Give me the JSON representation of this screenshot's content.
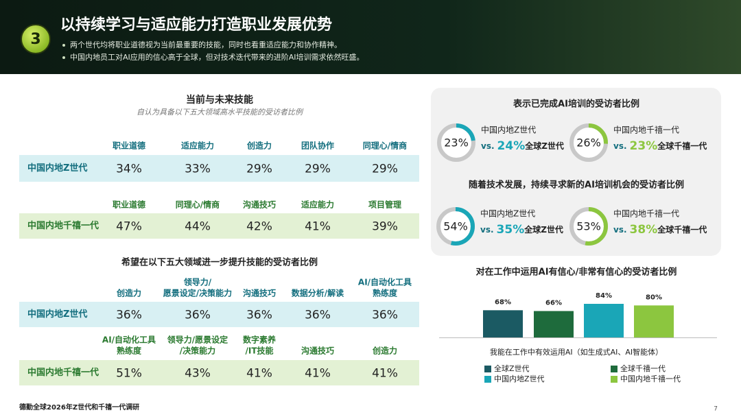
{
  "header": {
    "number": "3",
    "title": "以持续学习与适应能力打造职业发展优势",
    "bullets": [
      "两个世代均将职业道德视为当前最重要的技能，同时也看重适应能力和协作精神。",
      "中国内地员工对AI应用的信心高于全球，但对技术迭代带来的进阶AI培训需求依然旺盛。"
    ]
  },
  "skills": {
    "title": "当前与未来技能",
    "subtitle": "自认为具备以下五大领域高水平技能的受访者比例",
    "rows": [
      {
        "group": "中国内地Z世代",
        "items": [
          {
            "skill": [
              "职业道德"
            ],
            "value": "34%"
          },
          {
            "skill": [
              "适应能力"
            ],
            "value": "33%"
          },
          {
            "skill": [
              "创造力"
            ],
            "value": "29%"
          },
          {
            "skill": [
              "团队协作"
            ],
            "value": "29%"
          },
          {
            "skill": [
              "同理心/情商"
            ],
            "value": "29%"
          }
        ]
      },
      {
        "group": "中国内地千禧一代",
        "items": [
          {
            "skill": [
              "职业道德"
            ],
            "value": "47%"
          },
          {
            "skill": [
              "同理心/情商"
            ],
            "value": "44%"
          },
          {
            "skill": [
              "沟通技巧"
            ],
            "value": "42%"
          },
          {
            "skill": [
              "适应能力"
            ],
            "value": "41%"
          },
          {
            "skill": [
              "项目管理"
            ],
            "value": "39%"
          }
        ]
      }
    ]
  },
  "improve": {
    "title": "希望在以下五大领域进一步提升技能的受访者比例",
    "rows": [
      {
        "group": "中国内地Z世代",
        "items": [
          {
            "skill": [
              "创造力"
            ],
            "value": "36%"
          },
          {
            "skill": [
              "领导力/",
              "愿景设定/决策能力"
            ],
            "value": "36%"
          },
          {
            "skill": [
              "沟通技巧"
            ],
            "value": "36%"
          },
          {
            "skill": [
              "数据分析/解读"
            ],
            "value": "36%"
          },
          {
            "skill": [
              "AI/自动化工具",
              "熟练度"
            ],
            "value": "36%"
          }
        ]
      },
      {
        "group": "中国内地千禧一代",
        "items": [
          {
            "skill": [
              "AI/自动化工具",
              "熟练度"
            ],
            "value": "51%"
          },
          {
            "skill": [
              "领导力/愿景设定",
              "/决策能力"
            ],
            "value": "43%"
          },
          {
            "skill": [
              "数字素养",
              "/IT技能"
            ],
            "value": "41%"
          },
          {
            "skill": [
              "沟通技巧"
            ],
            "value": "41%"
          },
          {
            "skill": [
              "创造力"
            ],
            "value": "41%"
          }
        ]
      }
    ]
  },
  "ai_training": [
    {
      "title": "表示已完成AI培训的受访者比例",
      "items": [
        {
          "name": "中国内地Z世代",
          "value": 23,
          "value_label": "23%",
          "vs": "vs.",
          "compare": "24%",
          "compare_name": "全球Z世代"
        },
        {
          "name": "中国内地千禧一代",
          "value": 26,
          "value_label": "26%",
          "vs": "vs.",
          "compare": "23%",
          "compare_name": "全球千禧一代"
        }
      ]
    },
    {
      "title": "随着技术发展，持续寻求新的AI培训机会的受访者比例",
      "items": [
        {
          "name": "中国内地Z世代",
          "value": 54,
          "value_label": "54%",
          "vs": "vs.",
          "compare": "35%",
          "compare_name": "全球Z世代"
        },
        {
          "name": "中国内地千禧一代",
          "value": 53,
          "value_label": "53%",
          "vs": "vs.",
          "compare": "38%",
          "compare_name": "全球千禧一代"
        }
      ]
    }
  ],
  "chart": {
    "type": "bar",
    "title": "对在工作中运用AI有信心/非常有信心的受访者比例",
    "categories": [
      "我能在工作中有效运用AI（如生成式AI、AI智能体）"
    ],
    "series": [
      {
        "name": "全球Z世代",
        "color": "#1b5a63",
        "values": [
          68
        ],
        "value_labels": [
          "68%"
        ]
      },
      {
        "name": "全球千禧一代",
        "color": "#1e6b3c",
        "values": [
          66
        ],
        "value_labels": [
          "66%"
        ]
      },
      {
        "name": "中国内地Z世代",
        "color": "#1aa6b7",
        "values": [
          84
        ],
        "value_labels": [
          "84%"
        ]
      },
      {
        "name": "中国内地千禧一代",
        "color": "#8cc63f",
        "values": [
          80
        ],
        "value_labels": [
          "80%"
        ]
      }
    ]
  },
  "footer": {
    "source": "德勤全球2026年Z世代和千禧一代调研",
    "page": "7"
  }
}
